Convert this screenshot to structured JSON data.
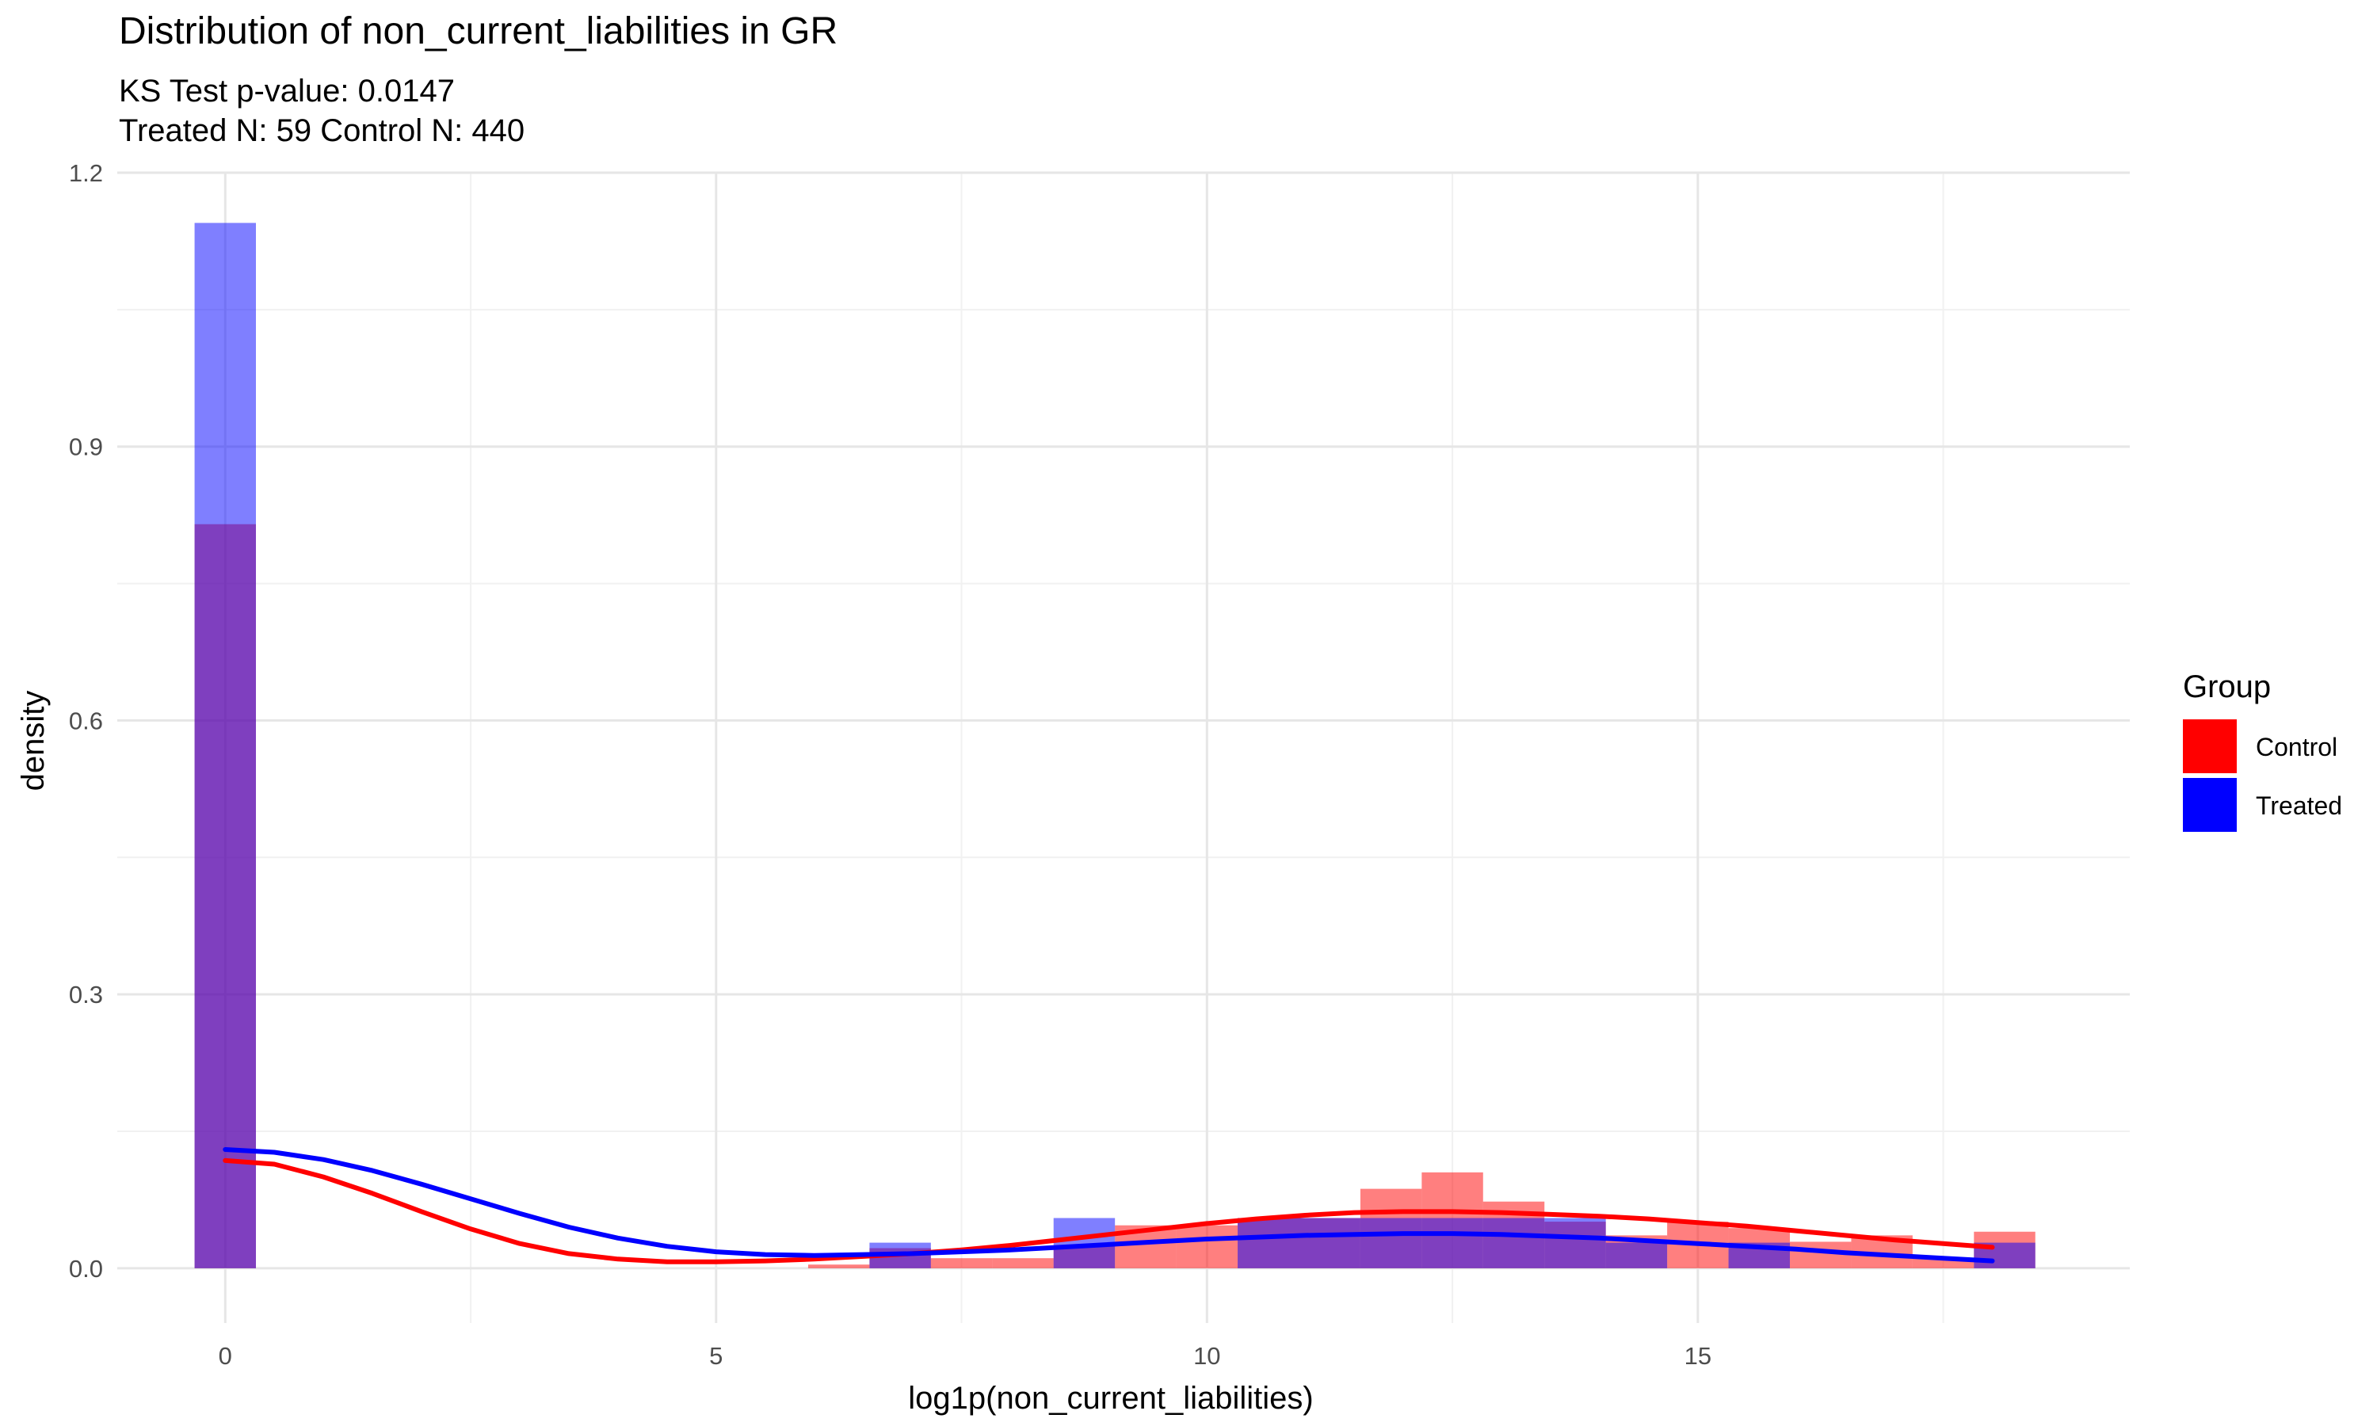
{
  "chart_data": {
    "type": "histogram",
    "title": "Distribution of non_current_liabilities in GR",
    "subtitle_lines": [
      "KS Test p-value: 0.0147",
      "Treated N: 59 Control N: 440"
    ],
    "xlabel": "log1p(non_current_liabilities)",
    "ylabel": "density",
    "xlim": [
      -1.1,
      19.4
    ],
    "ylim": [
      -0.06,
      1.2
    ],
    "x_ticks": [
      0,
      5,
      10,
      15
    ],
    "y_ticks": [
      0.0,
      0.3,
      0.6,
      0.9,
      1.2
    ],
    "y_tick_labels": [
      "0.0",
      "0.3",
      "0.6",
      "0.9",
      "1.2"
    ],
    "grid": true,
    "legend_position": "right",
    "legend_title": "Group",
    "bins": {
      "centers": [
        0.0,
        0.625,
        1.25,
        1.875,
        2.5,
        3.125,
        3.75,
        4.375,
        5.0,
        5.625,
        6.25,
        6.875,
        7.5,
        8.125,
        8.75,
        9.375,
        10.0,
        10.625,
        11.25,
        11.875,
        12.5,
        13.125,
        13.75,
        14.375,
        15.0,
        15.625,
        16.25,
        16.875,
        17.5,
        18.125
      ],
      "width": 0.625
    },
    "series": [
      {
        "name": "Control",
        "color": "#ff0000",
        "opacity": 0.5,
        "values": [
          0.815,
          0,
          0,
          0,
          0,
          0,
          0,
          0,
          0,
          0,
          0.004,
          0.022,
          0.011,
          0.011,
          0.025,
          0.047,
          0.047,
          0.055,
          0.055,
          0.087,
          0.105,
          0.073,
          0.051,
          0.036,
          0.051,
          0.044,
          0.029,
          0.036,
          0.011,
          0.04
        ],
        "density_curve": {
          "x": [
            0.0,
            0.5,
            1,
            1.5,
            2,
            2.5,
            3,
            3.5,
            4,
            4.5,
            5,
            5.5,
            6,
            6.5,
            7,
            7.5,
            8,
            8.5,
            9,
            9.5,
            10,
            10.5,
            11,
            11.5,
            12,
            12.5,
            13,
            13.5,
            14,
            14.5,
            15,
            15.5,
            16,
            16.5,
            17,
            17.5,
            18.0
          ],
          "y": [
            0.118,
            0.114,
            0.1,
            0.082,
            0.062,
            0.043,
            0.027,
            0.016,
            0.01,
            0.007,
            0.007,
            0.008,
            0.01,
            0.013,
            0.016,
            0.02,
            0.025,
            0.031,
            0.037,
            0.043,
            0.049,
            0.054,
            0.058,
            0.061,
            0.062,
            0.062,
            0.061,
            0.059,
            0.057,
            0.054,
            0.05,
            0.046,
            0.041,
            0.036,
            0.031,
            0.027,
            0.023
          ]
        }
      },
      {
        "name": "Treated",
        "color": "#0000ff",
        "opacity": 0.5,
        "values": [
          1.145,
          0,
          0,
          0,
          0,
          0,
          0,
          0,
          0,
          0,
          0,
          0.028,
          0,
          0,
          0.055,
          0,
          0,
          0.055,
          0.055,
          0.055,
          0.055,
          0.055,
          0.055,
          0.028,
          0,
          0.028,
          0,
          0,
          0,
          0.028
        ],
        "density_curve": {
          "x": [
            0.0,
            0.5,
            1,
            1.5,
            2,
            2.5,
            3,
            3.5,
            4,
            4.5,
            5,
            5.5,
            6,
            6.5,
            7,
            7.5,
            8,
            8.5,
            9,
            9.5,
            10,
            10.5,
            11,
            11.5,
            12,
            12.5,
            13,
            13.5,
            14,
            14.5,
            15,
            15.5,
            16,
            16.5,
            17,
            17.5,
            18.0
          ],
          "y": [
            0.13,
            0.127,
            0.119,
            0.107,
            0.092,
            0.076,
            0.06,
            0.045,
            0.033,
            0.024,
            0.018,
            0.015,
            0.014,
            0.015,
            0.016,
            0.018,
            0.02,
            0.023,
            0.026,
            0.029,
            0.032,
            0.034,
            0.036,
            0.037,
            0.038,
            0.038,
            0.037,
            0.035,
            0.033,
            0.03,
            0.027,
            0.024,
            0.021,
            0.017,
            0.014,
            0.011,
            0.008
          ]
        }
      }
    ]
  }
}
